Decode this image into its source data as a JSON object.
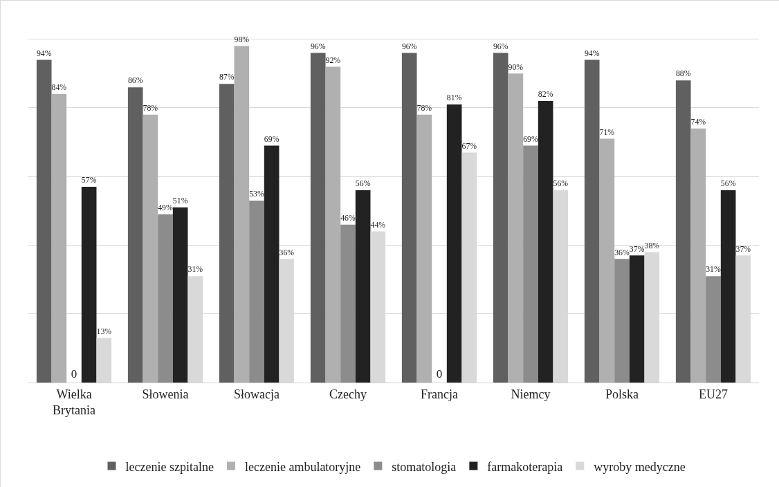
{
  "chart_data": {
    "type": "bar",
    "categories": [
      "Wielka Brytania",
      "Słowenia",
      "Słowacja",
      "Czechy",
      "Francja",
      "Niemcy",
      "Polska",
      "EU27"
    ],
    "series": [
      {
        "name": "leczenie szpitalne",
        "color": "#606060",
        "values": [
          94,
          86,
          87,
          96,
          96,
          96,
          94,
          88
        ],
        "value_labels": [
          "94%",
          "86%",
          "87%",
          "96%",
          "96%",
          "96%",
          "94%",
          "88%"
        ]
      },
      {
        "name": "leczenie ambulatoryjne",
        "color": "#b0b0b0",
        "values": [
          84,
          78,
          98,
          92,
          78,
          90,
          71,
          74
        ],
        "value_labels": [
          "84%",
          "78%",
          "98%",
          "92%",
          "78%",
          "90%",
          "71%",
          "74%"
        ]
      },
      {
        "name": "stomatologia",
        "color": "#8c8c8c",
        "values": [
          0,
          49,
          53,
          46,
          0,
          69,
          36,
          31
        ],
        "value_labels": [
          "0",
          "49%",
          "53%",
          "46%",
          "0",
          "69%",
          "36%",
          "31%"
        ]
      },
      {
        "name": "farmakoterapia",
        "color": "#222222",
        "values": [
          57,
          51,
          69,
          56,
          81,
          82,
          37,
          56
        ],
        "value_labels": [
          "57%",
          "51%",
          "69%",
          "56%",
          "81%",
          "82%",
          "37%",
          "56%"
        ]
      },
      {
        "name": "wyroby medyczne",
        "color": "#d9d9d9",
        "values": [
          13,
          31,
          36,
          44,
          67,
          56,
          38,
          37
        ],
        "value_labels": [
          "13%",
          "31%",
          "36%",
          "44%",
          "67%",
          "56%",
          "38%",
          "37%"
        ]
      }
    ],
    "tick_labels": "x",
    "grid": "y",
    "legend": "bottom"
  }
}
